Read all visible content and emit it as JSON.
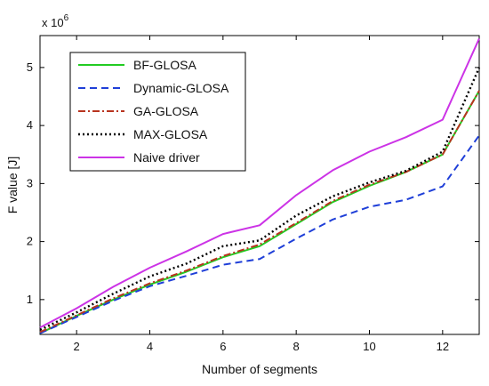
{
  "chart_data": {
    "type": "line",
    "title": "",
    "xlabel": "Number of segments",
    "ylabel": "F value [J]",
    "y_multiplier_label": "x 10",
    "y_multiplier_exp": "6",
    "xlim": [
      1,
      13
    ],
    "ylim": [
      0.4,
      5.55
    ],
    "xticks": [
      2,
      4,
      6,
      8,
      10,
      12
    ],
    "yticks": [
      1,
      2,
      3,
      4,
      5
    ],
    "grid": false,
    "legend_position": "top-left",
    "series": [
      {
        "name": "BF-GLOSA",
        "color": "#22cc22",
        "dash": "solid",
        "x": [
          1,
          2,
          3,
          4,
          5,
          6,
          7,
          8,
          9,
          10,
          11,
          12,
          13
        ],
        "y": [
          0.42,
          0.72,
          1.0,
          1.26,
          1.48,
          1.73,
          1.92,
          2.3,
          2.68,
          2.96,
          3.2,
          3.5,
          4.6
        ]
      },
      {
        "name": "Dynamic-GLOSA",
        "color": "#1f3fd8",
        "dash": "dashed",
        "x": [
          1,
          2,
          3,
          4,
          5,
          6,
          7,
          8,
          9,
          10,
          11,
          12,
          13
        ],
        "y": [
          0.42,
          0.7,
          0.98,
          1.23,
          1.41,
          1.6,
          1.7,
          2.05,
          2.38,
          2.6,
          2.72,
          2.95,
          3.83
        ]
      },
      {
        "name": "GA-GLOSA",
        "color": "#b8341f",
        "dash": "dashdot",
        "x": [
          1,
          2,
          3,
          4,
          5,
          6,
          7,
          8,
          9,
          10,
          11,
          12,
          13
        ],
        "y": [
          0.44,
          0.73,
          1.02,
          1.28,
          1.5,
          1.75,
          1.95,
          2.32,
          2.7,
          2.98,
          3.2,
          3.5,
          4.6
        ]
      },
      {
        "name": "MAX-GLOSA",
        "color": "#000000",
        "dash": "dotted",
        "x": [
          1,
          2,
          3,
          4,
          5,
          6,
          7,
          8,
          9,
          10,
          11,
          12,
          13
        ],
        "y": [
          0.48,
          0.78,
          1.1,
          1.4,
          1.62,
          1.92,
          2.02,
          2.45,
          2.78,
          3.02,
          3.22,
          3.55,
          5.0
        ]
      },
      {
        "name": "Naive driver",
        "color": "#cc33e6",
        "dash": "solid",
        "x": [
          1,
          2,
          3,
          4,
          5,
          6,
          7,
          8,
          9,
          10,
          11,
          12,
          13
        ],
        "y": [
          0.52,
          0.85,
          1.22,
          1.55,
          1.83,
          2.13,
          2.28,
          2.8,
          3.23,
          3.55,
          3.8,
          4.1,
          5.5
        ]
      }
    ]
  }
}
